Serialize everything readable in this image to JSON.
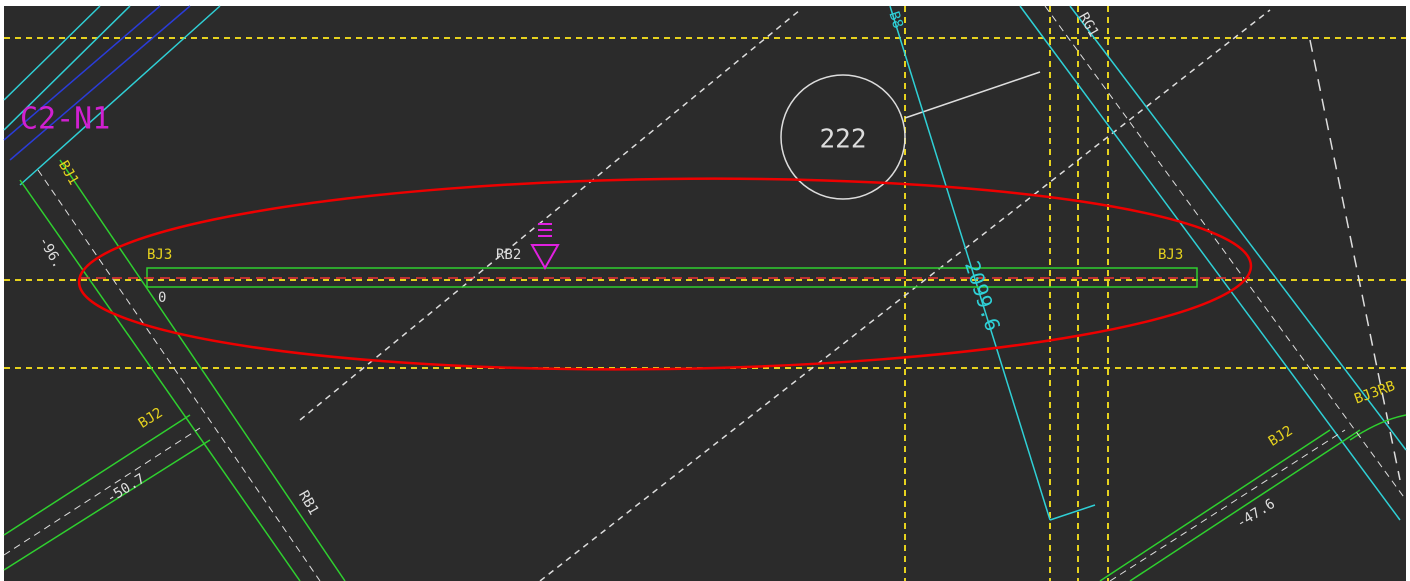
{
  "drawing": {
    "labels": [
      "C2-N1",
      "BJ1",
      "-96.",
      "BJ3",
      "RB2",
      "BJ3",
      "0",
      "222",
      "2099.6",
      "RG1",
      "B8",
      "BJ2",
      "-50.7",
      "RB1",
      "BJ2",
      "-47.6",
      "BJ3RB"
    ]
  }
}
